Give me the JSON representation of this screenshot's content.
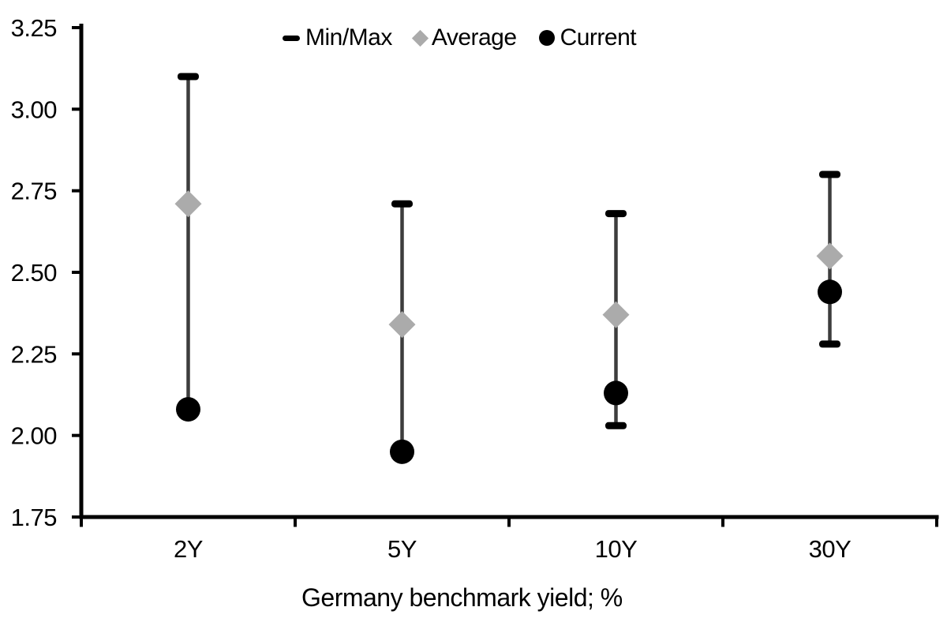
{
  "page": {
    "background": "#ffffff"
  },
  "chart_data": {
    "type": "scatter",
    "subtype": "min-max-range-with-average-and-current",
    "title": "",
    "xlabel": "Germany benchmark yield; %",
    "ylabel": "",
    "categories": [
      "2Y",
      "5Y",
      "10Y",
      "30Y"
    ],
    "y_axis": {
      "min": 1.75,
      "max": 3.25,
      "tick_step": 0.25,
      "tick_labels": [
        "3.25",
        "3.00",
        "2.75",
        "2.50",
        "2.25",
        "2.00",
        "1.75"
      ]
    },
    "grid": false,
    "legend": {
      "position": "top-center",
      "items": [
        {
          "label": "Min/Max",
          "marker": "dash",
          "color": "#000000"
        },
        {
          "label": "Average",
          "marker": "diamond",
          "color": "#ababab"
        },
        {
          "label": "Current",
          "marker": "circle",
          "color": "#000000"
        }
      ]
    },
    "series": [
      {
        "name": "Min/Max",
        "type": "range",
        "max": [
          3.1,
          2.71,
          2.68,
          2.8
        ],
        "min": [
          2.08,
          1.95,
          2.03,
          2.28
        ],
        "min_cap_visible": [
          false,
          false,
          true,
          true
        ],
        "max_cap_visible": [
          true,
          true,
          true,
          true
        ],
        "line_color": "#3d3d3d",
        "cap_color": "#000000"
      },
      {
        "name": "Average",
        "type": "point",
        "marker": "diamond",
        "color": "#ababab",
        "values": [
          2.71,
          2.34,
          2.37,
          2.55
        ]
      },
      {
        "name": "Current",
        "type": "point",
        "marker": "circle",
        "color": "#000000",
        "values": [
          2.08,
          1.95,
          2.13,
          2.44
        ]
      }
    ],
    "colors": {
      "axis": "#000000",
      "text": "#000000",
      "background": "#ffffff"
    }
  }
}
